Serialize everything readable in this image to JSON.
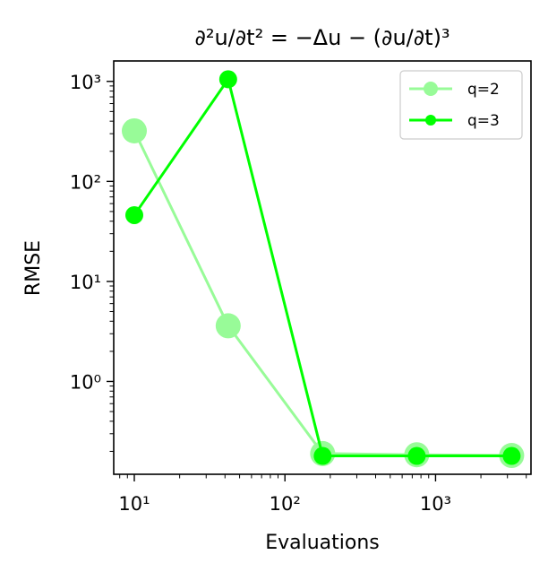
{
  "chart_data": {
    "type": "line",
    "title": "∂²u/∂t² = −Δu − (∂u/∂t)³",
    "xlabel": "Evaluations",
    "ylabel": "RMSE",
    "xscale": "log",
    "yscale": "log",
    "xlim": [
      7.3,
      4300
    ],
    "ylim": [
      0.118,
      1600
    ],
    "xticks": [
      10,
      100,
      1000
    ],
    "xtick_labels": [
      "10¹",
      "10²",
      "10³"
    ],
    "yticks": [
      1,
      10,
      100,
      1000
    ],
    "ytick_labels": [
      "10⁰",
      "10¹",
      "10²",
      "10³"
    ],
    "grid": false,
    "legend_position": "top-right",
    "series": [
      {
        "name": "q=2",
        "color": "#98fb98",
        "x": [
          10,
          42,
          178,
          750,
          3200
        ],
        "y": [
          320,
          3.6,
          0.19,
          0.185,
          0.182
        ]
      },
      {
        "name": "q=3",
        "color": "#00ff00",
        "x": [
          10,
          42,
          178,
          750,
          3200
        ],
        "y": [
          46,
          1050,
          0.18,
          0.18,
          0.18
        ]
      }
    ]
  }
}
